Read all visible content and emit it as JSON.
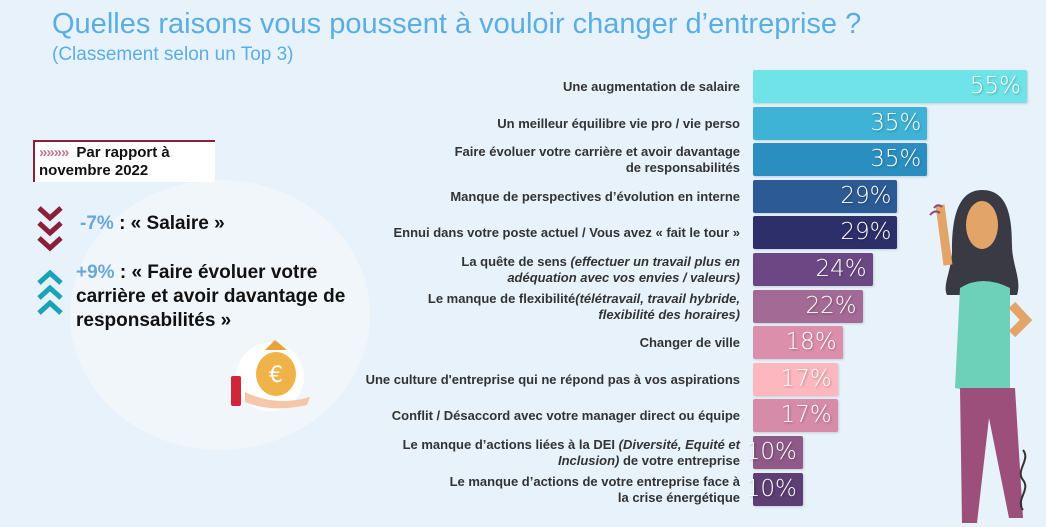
{
  "title": "Quelles raisons vous poussent à vouloir changer d’entreprise ?",
  "subtitle": "(Classement selon un Top 3)",
  "comparison": {
    "heading": "Par rapport à novembre 2022",
    "arrows": "»»»»",
    "items": [
      {
        "pct": "-7%",
        "text": " : « Salaire »",
        "direction": "down",
        "color": "#8a1f3a"
      },
      {
        "pct": "+9%",
        "text": " : « Faire évoluer votre carrière et avoir davantage de responsabilités »",
        "direction": "up",
        "color": "#1aa3b8"
      }
    ]
  },
  "chart_data": {
    "type": "bar",
    "orientation": "horizontal",
    "xlim": [
      0,
      55
    ],
    "categories": [
      {
        "main": "Une augmentation de salaire",
        "detail": ""
      },
      {
        "main": "Un meilleur équilibre vie pro / vie perso",
        "detail": ""
      },
      {
        "main": "Faire évoluer votre carrière et avoir davantage de responsabilités",
        "detail": ""
      },
      {
        "main": "Manque de perspectives d’évolution en interne",
        "detail": ""
      },
      {
        "main": "Ennui dans votre poste actuel / Vous avez « fait le tour »",
        "detail": ""
      },
      {
        "main": "La quête de sens ",
        "detail": "(effectuer un travail plus en adéquation avec vos envies / valeurs)"
      },
      {
        "main": "Le manque de flexibilité",
        "detail": "(télétravail, travail hybride, flexibilité des horaires)"
      },
      {
        "main": "Changer de ville",
        "detail": ""
      },
      {
        "main": "Une culture d'entreprise qui ne répond pas à vos aspirations",
        "detail": ""
      },
      {
        "main": "Conflit / Désaccord avec votre manager direct ou équipe",
        "detail": ""
      },
      {
        "main": "Le manque d’actions liées à la DEI ",
        "detail": "(Diversité, Equité et Inclusion)",
        "tail": " de votre entreprise"
      },
      {
        "main": "Le manque d’actions de votre entreprise face à la crise énergétique",
        "detail": ""
      }
    ],
    "values": [
      55,
      35,
      35,
      29,
      29,
      24,
      22,
      18,
      17,
      17,
      10,
      10
    ],
    "labels": [
      "55%",
      "35%",
      "35%",
      "29%",
      "29%",
      "24%",
      "22%",
      "18%",
      "17%",
      "17%",
      "10%",
      "10%"
    ],
    "colors": [
      "#6ee3e8",
      "#3fb3d6",
      "#2a8fc0",
      "#2c5a94",
      "#2d2f6b",
      "#6b4883",
      "#a36a95",
      "#dc8fab",
      "#fdb7bf",
      "#d68ba8",
      "#8f5a88",
      "#5d3f74"
    ]
  }
}
